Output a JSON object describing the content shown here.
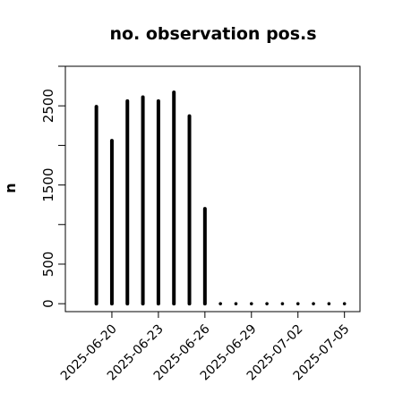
{
  "chart_data": {
    "type": "bar",
    "title": "no. observation pos.s",
    "xlabel": "",
    "ylabel": "n",
    "x_axis": "date",
    "xlim": [
      "2025-06-17",
      "2025-07-06"
    ],
    "ylim": [
      -100,
      3000
    ],
    "y_ticks": [
      0,
      500,
      1500,
      2500
    ],
    "x_tick_labels": [
      {
        "label": "2025-06-20",
        "date": "2025-06-20",
        "color": "#000000"
      },
      {
        "label": "2025-06-23",
        "date": "2025-06-23",
        "color": "#000000"
      },
      {
        "label": "2025-06-26",
        "date": "2025-06-26",
        "color": "#228B22"
      },
      {
        "label": "2025-06-29",
        "date": "2025-06-29",
        "color": "#000000"
      },
      {
        "label": "2025-07-02",
        "date": "2025-07-02",
        "color": "#000000"
      },
      {
        "label": "2025-07-05",
        "date": "2025-07-05",
        "color": "#000000"
      }
    ],
    "x": [
      "2025-06-19",
      "2025-06-20",
      "2025-06-21",
      "2025-06-22",
      "2025-06-23",
      "2025-06-24",
      "2025-06-25",
      "2025-06-26",
      "2025-06-27",
      "2025-06-28",
      "2025-06-29",
      "2025-06-30",
      "2025-07-01",
      "2025-07-02",
      "2025-07-03",
      "2025-07-04",
      "2025-07-05"
    ],
    "values": [
      2490,
      2060,
      2560,
      2610,
      2560,
      2670,
      2370,
      1200,
      0,
      0,
      0,
      0,
      0,
      0,
      0,
      0,
      0
    ],
    "grid": false,
    "legend": "none"
  }
}
